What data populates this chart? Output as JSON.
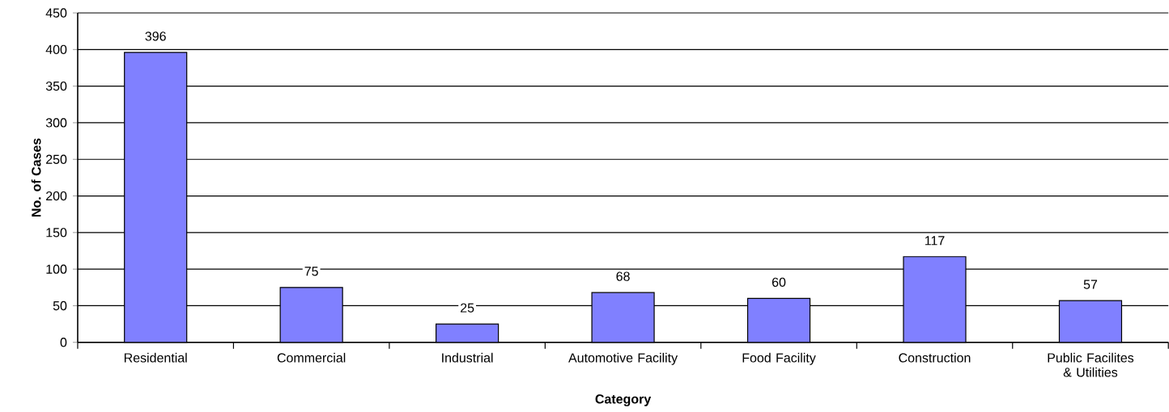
{
  "chart_data": {
    "type": "bar",
    "xlabel": "Category",
    "ylabel": "No. of Cases",
    "categories": [
      "Residential",
      "Commercial",
      "Industrial",
      "Automotive Facility",
      "Food Facility",
      "Construction",
      "Public Facilites & Utilities"
    ],
    "values": [
      396,
      75,
      25,
      68,
      60,
      117,
      57
    ],
    "color": "#8080ff",
    "ylim": [
      0,
      450
    ],
    "yticks": [
      0,
      50,
      100,
      150,
      200,
      250,
      300,
      350,
      400,
      450
    ],
    "grid": "y",
    "data_labels": true
  }
}
